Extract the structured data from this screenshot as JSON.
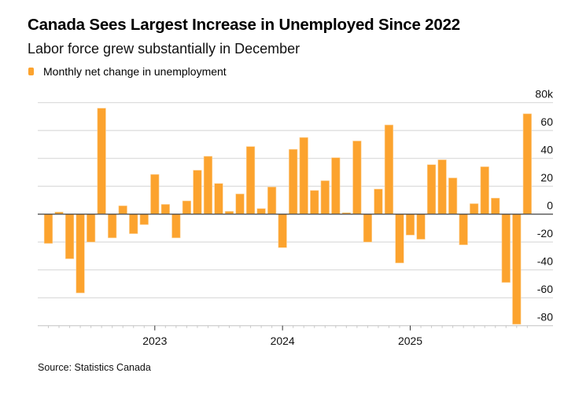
{
  "header": {
    "title": "Canada Sees Largest Increase in Unemployed Since 2022",
    "subtitle": "Labor force grew substantially in December"
  },
  "legend": {
    "label": "Monthly net change in unemployment",
    "color": "#fca32e"
  },
  "source": "Source: Statistics Canada",
  "chart_data": {
    "type": "bar",
    "title": "Canada Sees Largest Increase in Unemployed Since 2022",
    "subtitle": "Labor force grew substantially in December",
    "xlabel": "",
    "ylabel": "",
    "unit": "thousands",
    "ylim": [
      -80,
      80
    ],
    "yticks": [
      80,
      60,
      40,
      20,
      0,
      -20,
      -40,
      -60,
      -80
    ],
    "ytick_labels": [
      "80k",
      "60",
      "40",
      "20",
      "0",
      "-20",
      "-40",
      "-60",
      "-80"
    ],
    "xtick_labels": [
      {
        "label": "2023",
        "category": "2023-01"
      },
      {
        "label": "2024",
        "category": "2024-01"
      },
      {
        "label": "2025",
        "category": "2025-01"
      }
    ],
    "grid": true,
    "legend_position": "top-left",
    "series": [
      {
        "name": "Monthly net change in unemployment",
        "color": "#fca32e",
        "categories": [
          "2022-03",
          "2022-04",
          "2022-05",
          "2022-06",
          "2022-07",
          "2022-08",
          "2022-09",
          "2022-10",
          "2022-11",
          "2022-12",
          "2023-01",
          "2023-02",
          "2023-03",
          "2023-04",
          "2023-05",
          "2023-06",
          "2023-07",
          "2023-08",
          "2023-09",
          "2023-10",
          "2023-11",
          "2023-12",
          "2024-01",
          "2024-02",
          "2024-03",
          "2024-04",
          "2024-05",
          "2024-06",
          "2024-07",
          "2024-08",
          "2024-09",
          "2024-10",
          "2024-11",
          "2024-12",
          "2025-01",
          "2025-02",
          "2025-03",
          "2025-04",
          "2025-05",
          "2025-06",
          "2025-07",
          "2025-08",
          "2025-09",
          "2025-10",
          "2025-11",
          "2025-12"
        ],
        "values": [
          -21,
          1.5,
          -32,
          -56.5,
          -20,
          76,
          -17,
          6,
          -14,
          -7.5,
          28.5,
          7,
          -17,
          9.5,
          31.5,
          41.5,
          22,
          2,
          14.5,
          48.5,
          4,
          19.5,
          -24,
          46.5,
          55,
          17,
          24,
          40.5,
          1,
          52.5,
          -20,
          18,
          64,
          -35,
          -15,
          -18,
          35.5,
          39,
          26,
          -22,
          7.5,
          34,
          11.5,
          -49,
          -79,
          72
        ]
      }
    ]
  }
}
